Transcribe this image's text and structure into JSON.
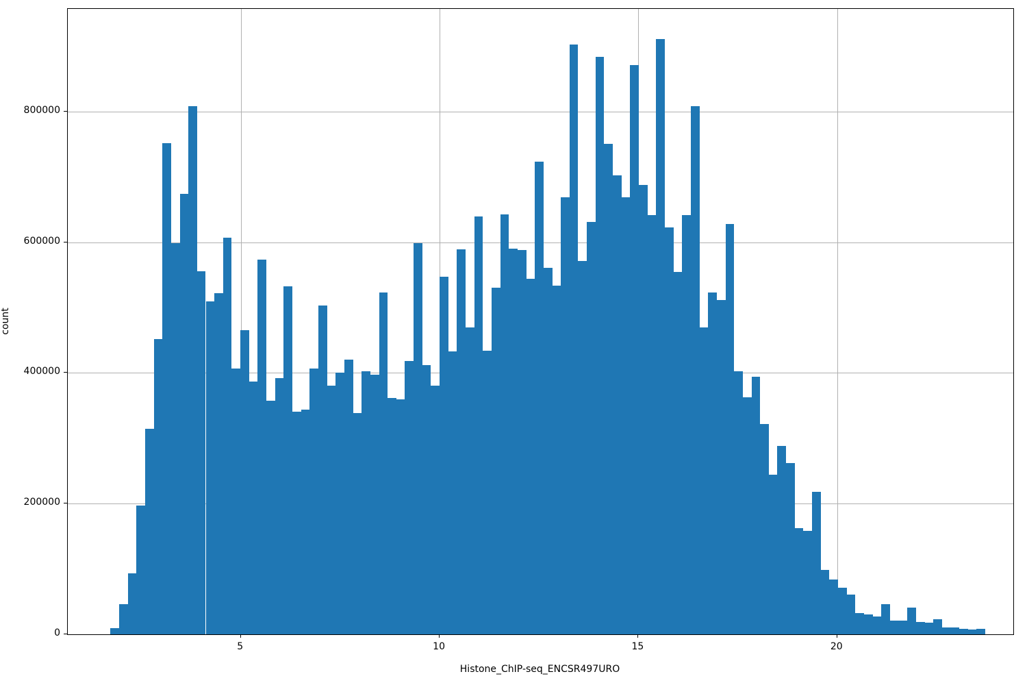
{
  "chart_data": {
    "type": "bar",
    "subtype": "histogram",
    "title": "",
    "xlabel": "Histone_ChIP-seq_ENCSR497URO",
    "ylabel": "count",
    "bar_color": "#1f77b4",
    "grid_color": "#b0b0b0",
    "axis_color": "#000000",
    "grid": "on",
    "legend": "none",
    "xlim": [
      0.648,
      24.43
    ],
    "ylim": [
      0,
      957000
    ],
    "x_ticks": [
      5,
      10,
      15,
      20
    ],
    "x_tick_labels": [
      "5",
      "10",
      "15",
      "20"
    ],
    "y_ticks": [
      0,
      200000,
      400000,
      600000,
      800000
    ],
    "y_tick_labels": [
      "0",
      "200000",
      "400000",
      "600000",
      "800000"
    ],
    "bin_start": 1.7215,
    "bin_width": 0.21786,
    "counts": [
      9000,
      46000,
      93000,
      197000,
      314000,
      452000,
      752000,
      598000,
      674000,
      808000,
      556000,
      509000,
      522000,
      607000,
      407000,
      465000,
      387000,
      573000,
      357000,
      392000,
      533000,
      341000,
      344000,
      407000,
      503000,
      380000,
      400000,
      420000,
      339000,
      402000,
      397000,
      523000,
      362000,
      360000,
      418000,
      599000,
      412000,
      381000,
      547000,
      433000,
      589000,
      470000,
      639000,
      434000,
      530000,
      643000,
      590000,
      588000,
      544000,
      723000,
      561000,
      534000,
      669000,
      903000,
      571000,
      631000,
      884000,
      751000,
      702000,
      669000,
      871000,
      688000,
      641000,
      911000,
      623000,
      555000,
      642000,
      808000,
      470000,
      523000,
      512000,
      628000,
      403000,
      363000,
      394000,
      322000,
      244000,
      288000,
      262000,
      162000,
      158000,
      218000,
      99000,
      84000,
      71000,
      61000,
      33000,
      30000,
      27000,
      46000,
      21000,
      21000,
      41000,
      19000,
      18000,
      23000,
      10000,
      11000,
      8000,
      7000,
      8000
    ]
  }
}
